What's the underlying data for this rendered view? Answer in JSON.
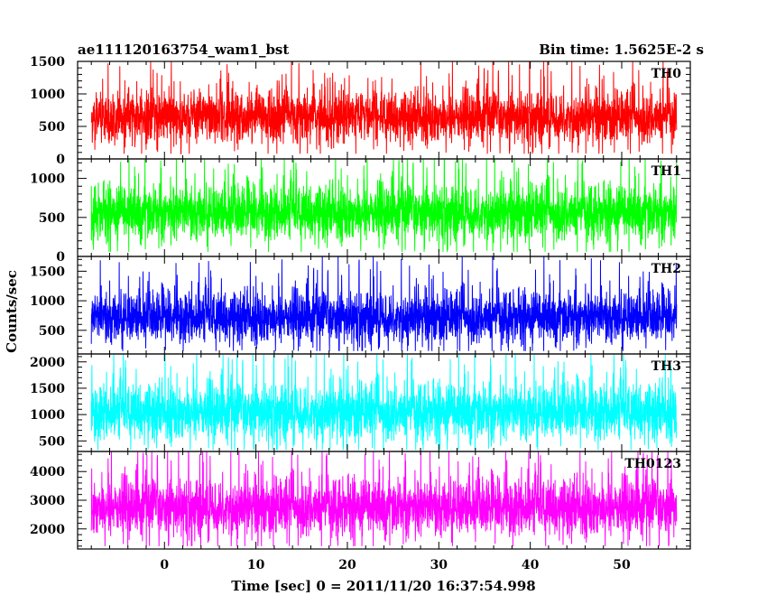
{
  "chart_data": {
    "type": "line",
    "title_left": "ae111120163754_wam1_bst",
    "title_right": "Bin time: 1.5625E-2 s",
    "xlabel": "Time [sec] 0 = 2011/11/20 16:37:54.998",
    "ylabel": "Counts/sec",
    "x_range": [
      -8,
      56
    ],
    "xlim": [
      -9.5,
      57.5
    ],
    "x_ticks": [
      0,
      10,
      20,
      30,
      40,
      50
    ],
    "grid": false,
    "panels": [
      {
        "name": "TH0",
        "color": "#ff0000",
        "ylim": [
          0,
          1500
        ],
        "y_ticks": [
          0,
          500,
          1000,
          1500
        ],
        "mean": 640,
        "spread": 190,
        "min": 80,
        "max": 1500
      },
      {
        "name": "TH1",
        "color": "#00ff00",
        "ylim": [
          0,
          1250
        ],
        "y_ticks": [
          0,
          500,
          1000
        ],
        "mean": 560,
        "spread": 170,
        "min": 60,
        "max": 1250
      },
      {
        "name": "TH2",
        "color": "#0000ff",
        "ylim": [
          100,
          1750
        ],
        "y_ticks": [
          500,
          1000,
          1500
        ],
        "mean": 720,
        "spread": 210,
        "min": 150,
        "max": 1750
      },
      {
        "name": "TH3",
        "color": "#00ffff",
        "ylim": [
          300,
          2150
        ],
        "y_ticks": [
          500,
          1000,
          1500,
          2000
        ],
        "mean": 1050,
        "spread": 260,
        "min": 330,
        "max": 2150
      },
      {
        "name": "TH0123",
        "color": "#ff00ff",
        "ylim": [
          1300,
          4700
        ],
        "y_ticks": [
          2000,
          3000,
          4000
        ],
        "mean": 2750,
        "spread": 480,
        "min": 1400,
        "max": 4700
      }
    ]
  }
}
